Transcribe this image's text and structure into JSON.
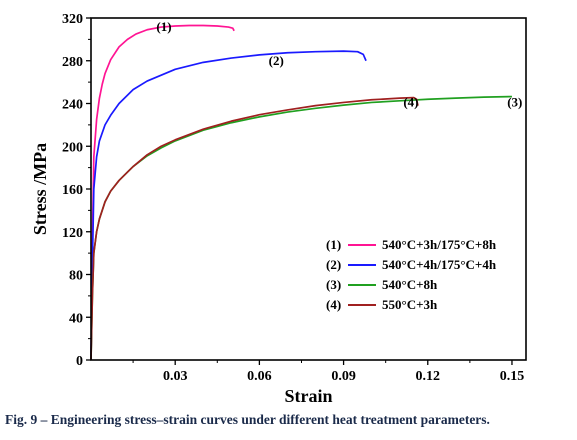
{
  "caption": "Fig. 9 – Engineering stress–strain curves under different heat treatment parameters.",
  "chart_data": {
    "type": "line",
    "xlabel": "Strain",
    "ylabel": "Stress /MPa",
    "xlim": [
      0,
      0.155
    ],
    "ylim": [
      0,
      320
    ],
    "xticks": [
      0.03,
      0.06,
      0.09,
      0.12,
      0.15
    ],
    "xtick_labels": [
      "0.03",
      "0.06",
      "0.09",
      "0.12",
      "0.15"
    ],
    "yticks": [
      0,
      40,
      80,
      120,
      160,
      200,
      240,
      280,
      320
    ],
    "ytick_labels": [
      "0",
      "40",
      "80",
      "120",
      "160",
      "200",
      "240",
      "280",
      "320"
    ],
    "legend_position": "bottom-right",
    "series": [
      {
        "name": "540°C+3h/175°C+8h",
        "tag": "(1)",
        "color": "#ff1493",
        "x": [
          0,
          0.0005,
          0.001,
          0.002,
          0.003,
          0.004,
          0.005,
          0.007,
          0.01,
          0.013,
          0.016,
          0.02,
          0.025,
          0.03,
          0.035,
          0.04,
          0.045,
          0.049,
          0.0505,
          0.051
        ],
        "y": [
          0,
          110,
          190,
          225,
          245,
          258,
          268,
          281,
          293,
          300,
          305,
          309,
          311.5,
          312.5,
          313,
          313,
          312.5,
          311.5,
          310.5,
          308
        ]
      },
      {
        "name": "540°C+4h/175°C+4h",
        "tag": "(2)",
        "color": "#1a1aff",
        "x": [
          0,
          0.0005,
          0.001,
          0.002,
          0.003,
          0.005,
          0.007,
          0.01,
          0.015,
          0.02,
          0.03,
          0.04,
          0.05,
          0.06,
          0.07,
          0.08,
          0.09,
          0.095,
          0.097,
          0.098
        ],
        "y": [
          0,
          90,
          160,
          190,
          205,
          220,
          229,
          240,
          253,
          261,
          272,
          278.5,
          282.5,
          285.5,
          287.5,
          288.5,
          289,
          288.5,
          286,
          280
        ]
      },
      {
        "name": "540°C+8h",
        "tag": "(3)",
        "color": "#20a020",
        "x": [
          0,
          0.0005,
          0.001,
          0.002,
          0.003,
          0.005,
          0.007,
          0.01,
          0.015,
          0.02,
          0.025,
          0.03,
          0.04,
          0.05,
          0.06,
          0.07,
          0.08,
          0.09,
          0.1,
          0.11,
          0.12,
          0.13,
          0.14,
          0.15
        ],
        "y": [
          0,
          60,
          100,
          120,
          132,
          148,
          158,
          168,
          181,
          191,
          198.5,
          205,
          215,
          222,
          227.5,
          232,
          235.5,
          238.5,
          241,
          242.5,
          244,
          245,
          246,
          246.5
        ]
      },
      {
        "name": "550°C+3h",
        "tag": "(4)",
        "color": "#a02020",
        "x": [
          0,
          0.0005,
          0.001,
          0.002,
          0.003,
          0.005,
          0.007,
          0.01,
          0.015,
          0.02,
          0.025,
          0.03,
          0.04,
          0.05,
          0.06,
          0.07,
          0.08,
          0.09,
          0.1,
          0.11,
          0.115,
          0.116,
          0.1165
        ],
        "y": [
          0,
          60,
          100,
          120,
          132,
          148,
          158,
          168,
          181,
          192,
          200,
          206,
          216,
          223.5,
          229.5,
          234,
          238,
          241,
          243.5,
          245,
          245.5,
          244,
          238
        ]
      }
    ]
  }
}
